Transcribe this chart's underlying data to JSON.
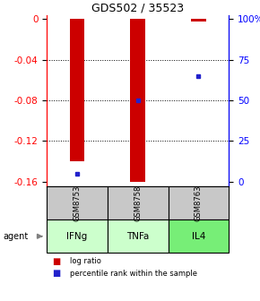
{
  "title": "GDS502 / 35523",
  "samples": [
    "GSM8753",
    "GSM8758",
    "GSM8763"
  ],
  "agents": [
    "IFNg",
    "TNFa",
    "IL4"
  ],
  "log_ratios": [
    -0.14,
    -0.16,
    -0.002
  ],
  "percentile_ranks": [
    5,
    50,
    65
  ],
  "left_ticks": [
    0,
    -0.04,
    -0.08,
    -0.12,
    -0.16
  ],
  "right_ticks": [
    100,
    75,
    50,
    25,
    0
  ],
  "bar_color": "#cc0000",
  "dot_color": "#2222cc",
  "sample_box_color": "#c8c8c8",
  "agent_box_colors": [
    "#ccffcc",
    "#ccffcc",
    "#77ee77"
  ],
  "ymin": -0.165,
  "ymax": 0.004,
  "bar_width": 0.25
}
